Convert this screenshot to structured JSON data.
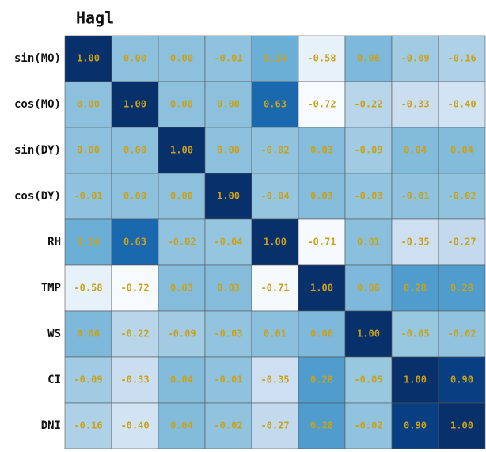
{
  "chart_data": {
    "type": "heatmap",
    "title": "Hagl",
    "colormap": "Blues",
    "zlim": [
      -0.72,
      1
    ],
    "rows": [
      "sin(MO)",
      "cos(MO)",
      "sin(DY)",
      "cos(DY)",
      "RH",
      "TMP",
      "WS",
      "CI",
      "DNI"
    ],
    "values": [
      [
        1,
        0,
        0,
        -0.01,
        0.14,
        -0.58,
        0.06,
        -0.09,
        -0.16
      ],
      [
        0,
        1,
        0,
        0,
        0.63,
        -0.72,
        -0.22,
        -0.33,
        -0.4
      ],
      [
        0,
        0,
        1,
        0,
        -0.02,
        0.03,
        -0.09,
        0.04,
        0.04
      ],
      [
        -0.01,
        0,
        0,
        1,
        -0.04,
        0.03,
        -0.03,
        -0.01,
        -0.02
      ],
      [
        0.14,
        0.63,
        -0.02,
        -0.04,
        1,
        -0.71,
        0.01,
        -0.35,
        -0.27
      ],
      [
        -0.58,
        -0.72,
        0.03,
        0.03,
        -0.71,
        1,
        0.06,
        0.28,
        0.28
      ],
      [
        0.06,
        -0.22,
        -0.09,
        -0.03,
        0.01,
        0.06,
        1,
        -0.05,
        -0.02
      ],
      [
        -0.09,
        -0.33,
        0.04,
        -0.01,
        -0.35,
        0.28,
        -0.05,
        1,
        0.9
      ],
      [
        -0.16,
        -0.4,
        0.04,
        -0.02,
        -0.27,
        0.28,
        -0.02,
        0.9,
        1
      ]
    ],
    "value_labels": [
      [
        "1.00",
        "0.00",
        "0.00",
        "-0.01",
        "0.14",
        "-0.58",
        "0.06",
        "-0.09",
        "-0.16"
      ],
      [
        "0.00",
        "1.00",
        "0.00",
        "0.00",
        "0.63",
        "-0.72",
        "-0.22",
        "-0.33",
        "-0.40"
      ],
      [
        "0.00",
        "0.00",
        "1.00",
        "0.00",
        "-0.02",
        "0.03",
        "-0.09",
        "0.04",
        "0.04"
      ],
      [
        "-0.01",
        "0.00",
        "0.00",
        "1.00",
        "-0.04",
        "0.03",
        "-0.03",
        "-0.01",
        "-0.02"
      ],
      [
        "0.14",
        "0.63",
        "-0.02",
        "-0.04",
        "1.00",
        "-0.71",
        "0.01",
        "-0.35",
        "-0.27"
      ],
      [
        "-0.58",
        "-0.72",
        "0.03",
        "0.03",
        "-0.71",
        "1.00",
        "0.06",
        "0.28",
        "0.28"
      ],
      [
        "0.06",
        "-0.22",
        "-0.09",
        "-0.03",
        "0.01",
        "0.06",
        "1.00",
        "-0.05",
        "-0.02"
      ],
      [
        "-0.09",
        "-0.33",
        "0.04",
        "-0.01",
        "-0.35",
        "0.28",
        "-0.05",
        "1.00",
        "0.90"
      ],
      [
        "-0.16",
        "-0.40",
        "0.04",
        "-0.02",
        "-0.27",
        "0.28",
        "-0.02",
        "0.90",
        "1.00"
      ]
    ]
  }
}
